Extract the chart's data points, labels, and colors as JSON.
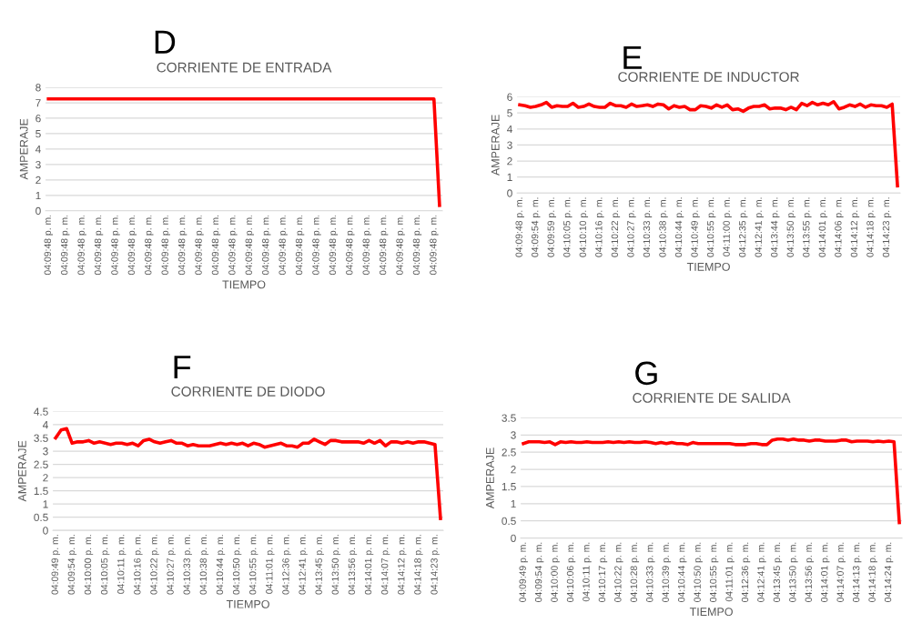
{
  "chart_data": [
    {
      "type": "line",
      "title": "D",
      "subtitle": "CORRIENTE DE ENTRADA",
      "xlabel": "TIEMPO",
      "ylabel": "AMPERAJE",
      "ylim": [
        0,
        8
      ],
      "yticks": [
        0,
        1,
        2,
        3,
        4,
        5,
        6,
        7,
        8
      ],
      "grid": "y",
      "marker": "none",
      "line_style": "solid",
      "categories": [
        "04:09:48 p. m.",
        null,
        null,
        "04:09:48 p. m.",
        null,
        null,
        "04:09:48 p. m.",
        null,
        null,
        "04:09:48 p. m.",
        null,
        null,
        "04:09:48 p. m.",
        null,
        null,
        "04:09:48 p. m.",
        null,
        null,
        "04:09:48 p. m.",
        null,
        null,
        "04:09:48 p. m.",
        null,
        null,
        "04:09:48 p. m.",
        null,
        null,
        "04:09:48 p. m.",
        null,
        null,
        "04:09:48 p. m.",
        null,
        null,
        "04:09:48 p. m.",
        null,
        null,
        "04:09:48 p. m.",
        null,
        null,
        "04:09:48 p. m.",
        null,
        null,
        "04:09:48 p. m.",
        null,
        null,
        "04:09:48 p. m.",
        null,
        null,
        "04:09:48 p. m.",
        null,
        null,
        "04:09:48 p. m.",
        null,
        null,
        "04:09:48 p. m.",
        null,
        null,
        "04:09:48 p. m.",
        null,
        null,
        "04:09:48 p. m.",
        null,
        null,
        "04:09:48 p. m.",
        null,
        null,
        "04:09:48 p. m.",
        null,
        null,
        "04:09:48 p. m.",
        null
      ],
      "series": [
        {
          "color": "#ff0000",
          "values": [
            7.25,
            7.25,
            7.25,
            7.25,
            7.25,
            7.25,
            7.25,
            7.25,
            7.25,
            7.25,
            7.25,
            7.25,
            7.25,
            7.25,
            7.25,
            7.25,
            7.25,
            7.25,
            7.25,
            7.25,
            7.25,
            7.25,
            7.25,
            7.25,
            7.25,
            7.25,
            7.25,
            7.25,
            7.25,
            7.25,
            7.25,
            7.25,
            7.25,
            7.25,
            7.25,
            7.25,
            7.25,
            7.25,
            7.25,
            7.25,
            7.25,
            7.25,
            7.25,
            7.25,
            7.25,
            7.25,
            7.25,
            7.25,
            7.25,
            7.25,
            7.25,
            7.25,
            7.25,
            7.25,
            7.25,
            7.25,
            7.25,
            7.25,
            7.25,
            7.25,
            7.25,
            7.25,
            7.25,
            7.25,
            7.25,
            7.25,
            7.25,
            7.25,
            7.25,
            7.25,
            0.35
          ]
        }
      ]
    },
    {
      "type": "line",
      "title": "E",
      "subtitle": "CORRIENTE DE INDUCTOR",
      "xlabel": "TIEMPO",
      "ylabel": "AMPERAJE",
      "ylim": [
        0,
        6
      ],
      "yticks": [
        0,
        1,
        2,
        3,
        4,
        5,
        6
      ],
      "grid": "y",
      "marker": "none",
      "line_style": "solid",
      "categories": [
        "04:09:48 p. m.",
        null,
        null,
        "04:09:54 p. m.",
        null,
        null,
        "04:09:59 p. m.",
        null,
        null,
        "04:10:05 p. m.",
        null,
        null,
        "04:10:10 p. m.",
        null,
        null,
        "04:10:16 p. m.",
        null,
        null,
        "04:10:22 p. m.",
        null,
        null,
        "04:10:27 p. m.",
        null,
        null,
        "04:10:33 p. m.",
        null,
        null,
        "04:10:38 p. m.",
        null,
        null,
        "04:10:44 p. m.",
        null,
        null,
        "04:10:49 p. m.",
        null,
        null,
        "04:10:55 p. m.",
        null,
        null,
        "04:11:00 p. m.",
        null,
        null,
        "04:12:35 p. m.",
        null,
        null,
        "04:12:41 p. m.",
        null,
        null,
        "04:13:44 p. m.",
        null,
        null,
        "04:13:50 p. m.",
        null,
        null,
        "04:13:55 p. m.",
        null,
        null,
        "04:14:01 p. m.",
        null,
        null,
        "04:14:06 p. m.",
        null,
        null,
        "04:14:12 p. m.",
        null,
        null,
        "04:14:18 p. m.",
        null,
        null,
        "04:14:23 p. m.",
        null,
        null
      ],
      "series": [
        {
          "color": "#ff0000",
          "values": [
            5.5,
            5.45,
            5.35,
            5.4,
            5.5,
            5.65,
            5.35,
            5.45,
            5.4,
            5.4,
            5.6,
            5.35,
            5.4,
            5.55,
            5.4,
            5.35,
            5.35,
            5.6,
            5.45,
            5.45,
            5.35,
            5.55,
            5.4,
            5.45,
            5.5,
            5.4,
            5.55,
            5.5,
            5.25,
            5.45,
            5.35,
            5.4,
            5.2,
            5.2,
            5.45,
            5.4,
            5.3,
            5.5,
            5.35,
            5.5,
            5.2,
            5.25,
            5.1,
            5.3,
            5.4,
            5.4,
            5.5,
            5.25,
            5.3,
            5.3,
            5.2,
            5.35,
            5.2,
            5.6,
            5.45,
            5.65,
            5.5,
            5.6,
            5.5,
            5.7,
            5.25,
            5.35,
            5.5,
            5.4,
            5.55,
            5.35,
            5.5,
            5.45,
            5.45,
            5.35,
            5.55,
            0.45
          ]
        }
      ]
    },
    {
      "type": "line",
      "title": "F",
      "subtitle": "CORRIENTE DE DIODO",
      "xlabel": "TIEMPO",
      "ylabel": "AMPERAJE",
      "ylim": [
        0,
        4.5
      ],
      "yticks": [
        0,
        0.5,
        1,
        1.5,
        2,
        2.5,
        3,
        3.5,
        4,
        4.5
      ],
      "grid": "y",
      "marker": "none",
      "line_style": "solid",
      "categories": [
        "04:09:49 p. m.",
        null,
        null,
        "04:09:54 p. m.",
        null,
        null,
        "04:10:00 p. m.",
        null,
        null,
        "04:10:05 p. m.",
        null,
        null,
        "04:10:11 p. m.",
        null,
        null,
        "04:10:16 p. m.",
        null,
        null,
        "04:10:22 p. m.",
        null,
        null,
        "04:10:27 p. m.",
        null,
        null,
        "04:10:33 p. m.",
        null,
        null,
        "04:10:38 p. m.",
        null,
        null,
        "04:10:44 p. m.",
        null,
        null,
        "04:10:50 p. m.",
        null,
        null,
        "04:10:55 p. m.",
        null,
        null,
        "04:11:01 p. m.",
        null,
        null,
        "04:12:36 p. m.",
        null,
        null,
        "04:12:41 p. m.",
        null,
        null,
        "04:13:45 p. m.",
        null,
        null,
        "04:13:50 p. m.",
        null,
        null,
        "04:13:56 p. m.",
        null,
        null,
        "04:14:01 p. m.",
        null,
        null,
        "04:14:07 p. m.",
        null,
        null,
        "04:14:12 p. m.",
        null,
        null,
        "04:14:18 p. m.",
        null,
        null,
        "04:14:23 p. m.",
        null
      ],
      "series": [
        {
          "color": "#ff0000",
          "values": [
            3.5,
            3.8,
            3.85,
            3.3,
            3.35,
            3.35,
            3.4,
            3.3,
            3.35,
            3.3,
            3.25,
            3.3,
            3.3,
            3.25,
            3.3,
            3.2,
            3.4,
            3.45,
            3.35,
            3.3,
            3.35,
            3.4,
            3.3,
            3.3,
            3.2,
            3.25,
            3.2,
            3.2,
            3.2,
            3.25,
            3.3,
            3.25,
            3.3,
            3.25,
            3.3,
            3.2,
            3.3,
            3.25,
            3.15,
            3.2,
            3.25,
            3.3,
            3.2,
            3.2,
            3.15,
            3.3,
            3.3,
            3.45,
            3.35,
            3.25,
            3.4,
            3.4,
            3.35,
            3.35,
            3.35,
            3.35,
            3.3,
            3.4,
            3.3,
            3.4,
            3.2,
            3.35,
            3.35,
            3.3,
            3.35,
            3.3,
            3.35,
            3.35,
            3.3,
            3.25,
            0.45
          ]
        }
      ]
    },
    {
      "type": "line",
      "title": "G",
      "subtitle": "CORRIENTE DE SALIDA",
      "xlabel": "TIEMPO",
      "ylabel": "AMPERAJE",
      "ylim": [
        0,
        3.5
      ],
      "yticks": [
        0,
        0.5,
        1,
        1.5,
        2,
        2.5,
        3,
        3.5
      ],
      "grid": "y",
      "marker": "none",
      "line_style": "solid",
      "categories": [
        "04:09:49 p. m.",
        null,
        null,
        "04:09:54 p. m.",
        null,
        null,
        "04:10:00 p. m.",
        null,
        null,
        "04:10:06 p. m.",
        null,
        null,
        "04:10:11 p. m.",
        null,
        null,
        "04:10:17 p. m.",
        null,
        null,
        "04:10:22 p. m.",
        null,
        null,
        "04:10:28 p. m.",
        null,
        null,
        "04:10:33 p. m.",
        null,
        null,
        "04:10:39 p. m.",
        null,
        null,
        "04:10:44 p. m.",
        null,
        null,
        "04:10:50 p. m.",
        null,
        null,
        "04:10:55 p. m.",
        null,
        null,
        "04:11:01 p. m.",
        null,
        null,
        "04:12:36 p. m.",
        null,
        null,
        "04:12:41 p. m.",
        null,
        null,
        "04:13:45 p. m.",
        null,
        null,
        "04:13:50 p. m.",
        null,
        null,
        "04:13:56 p. m.",
        null,
        null,
        "04:14:01 p. m.",
        null,
        null,
        "04:14:07 p. m.",
        null,
        null,
        "04:14:13 p. m.",
        null,
        null,
        "04:14:18 p. m.",
        null,
        null,
        "04:14:24 p. m.",
        null,
        null
      ],
      "series": [
        {
          "color": "#ff0000",
          "values": [
            2.75,
            2.8,
            2.8,
            2.8,
            2.78,
            2.8,
            2.72,
            2.8,
            2.78,
            2.8,
            2.78,
            2.78,
            2.8,
            2.78,
            2.78,
            2.78,
            2.8,
            2.78,
            2.8,
            2.78,
            2.8,
            2.78,
            2.78,
            2.8,
            2.78,
            2.75,
            2.78,
            2.75,
            2.78,
            2.75,
            2.75,
            2.72,
            2.78,
            2.75,
            2.75,
            2.75,
            2.75,
            2.75,
            2.75,
            2.75,
            2.72,
            2.72,
            2.72,
            2.75,
            2.75,
            2.72,
            2.72,
            2.85,
            2.88,
            2.88,
            2.85,
            2.88,
            2.85,
            2.85,
            2.82,
            2.85,
            2.85,
            2.82,
            2.82,
            2.82,
            2.85,
            2.85,
            2.8,
            2.82,
            2.82,
            2.82,
            2.8,
            2.82,
            2.8,
            2.82,
            2.8,
            0.45
          ]
        }
      ]
    }
  ]
}
